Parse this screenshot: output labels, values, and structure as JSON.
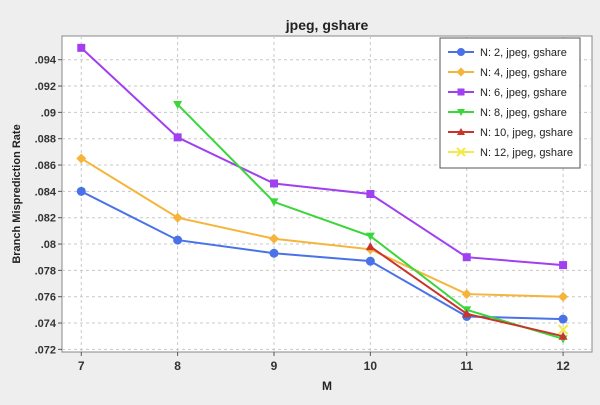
{
  "chart_data": {
    "type": "line",
    "title": "jpeg, gshare",
    "xlabel": "M",
    "ylabel": "Branch Misprediction Rate",
    "x": [
      7,
      8,
      9,
      10,
      11,
      12
    ],
    "xlim": [
      6.8,
      12.3
    ],
    "ylim": [
      0.0718,
      0.0958
    ],
    "yticks": [
      ".072",
      ".074",
      ".076",
      ".078",
      ".08",
      ".082",
      ".084",
      ".086",
      ".088",
      ".09",
      ".092",
      ".094"
    ],
    "grid": true,
    "legend_position": "top-right",
    "series": [
      {
        "name": "N: 2, jpeg, gshare",
        "color": "#4a72e8",
        "marker": "circle",
        "values": [
          0.084,
          0.0803,
          0.0793,
          0.0787,
          0.0745,
          0.0743
        ]
      },
      {
        "name": "N: 4, jpeg, gshare",
        "color": "#f5b53a",
        "marker": "diamond",
        "values": [
          0.0865,
          0.082,
          0.0804,
          0.0796,
          0.0762,
          0.076
        ]
      },
      {
        "name": "N: 6, jpeg, gshare",
        "color": "#a040f0",
        "marker": "square",
        "values": [
          0.0949,
          0.0881,
          0.0846,
          0.0838,
          0.079,
          0.0784
        ]
      },
      {
        "name": "N: 8, jpeg, gshare",
        "color": "#3ad63a",
        "marker": "triangle-down",
        "values": [
          null,
          0.0906,
          0.0832,
          0.0806,
          0.075,
          0.0728
        ]
      },
      {
        "name": "N: 10, jpeg, gshare",
        "color": "#c8342c",
        "marker": "triangle-up",
        "values": [
          null,
          null,
          null,
          0.0798,
          0.0747,
          0.073
        ]
      },
      {
        "name": "N: 12, jpeg, gshare",
        "color": "#f2ea4a",
        "marker": "x",
        "values": [
          null,
          null,
          null,
          null,
          null,
          0.0735
        ]
      }
    ]
  }
}
